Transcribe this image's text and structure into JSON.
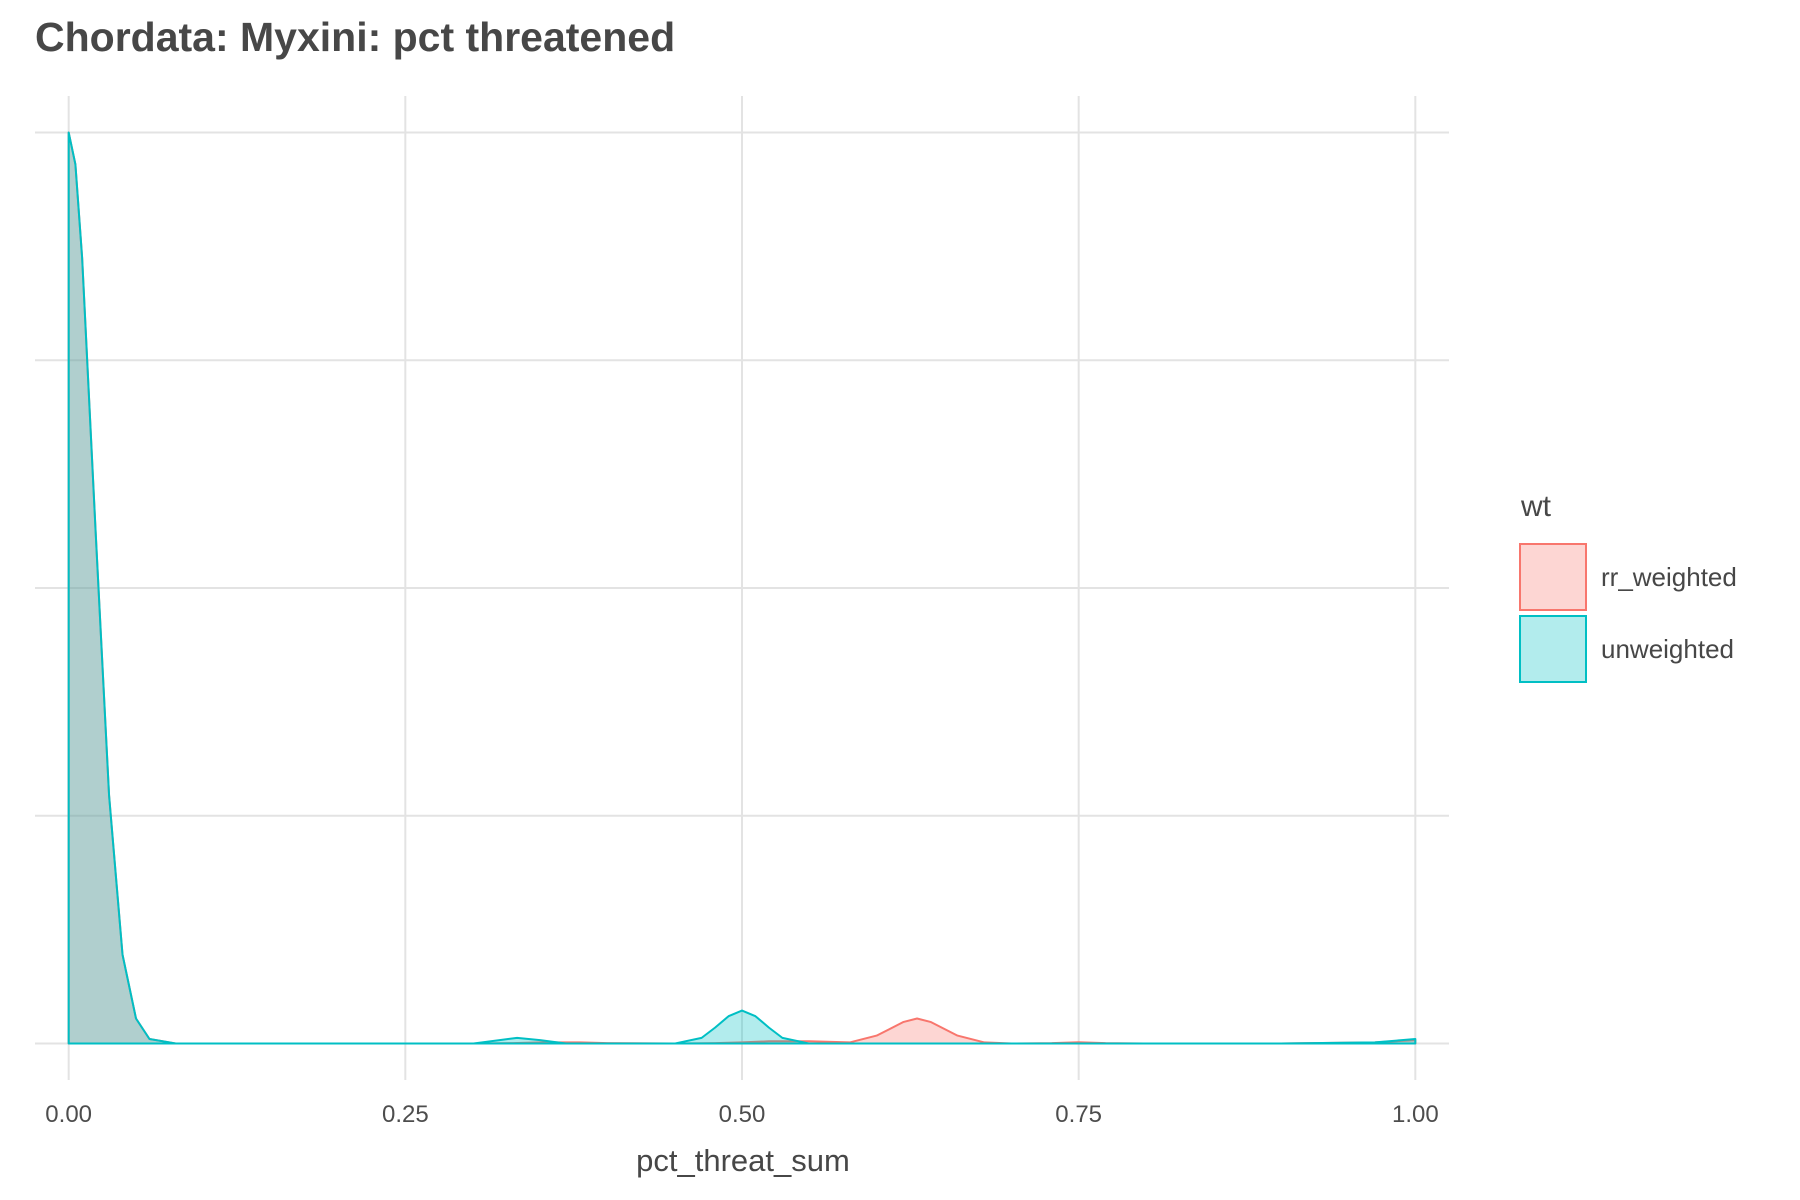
{
  "chart_data": {
    "type": "area",
    "title": "Chordata: Myxini: pct threatened",
    "xlabel": "pct_threat_sum",
    "ylabel": "",
    "xlim": [
      -0.025,
      1.025
    ],
    "ylim": [
      -1.6,
      41.6
    ],
    "x_ticks": [
      0.0,
      0.25,
      0.5,
      0.75,
      1.0
    ],
    "x_tick_labels": [
      "0.00",
      "0.25",
      "0.50",
      "0.75",
      "1.00"
    ],
    "y_gridlines": [
      0,
      10,
      20,
      30,
      40
    ],
    "y_tick_labels_shown": false,
    "grid": true,
    "legend": {
      "title": "wt",
      "placement": "right"
    },
    "series": [
      {
        "name": "rr_weighted",
        "color": "#F8766D",
        "fill": "#F8766D",
        "fill_opacity": 0.3,
        "x": [
          0.0,
          0.005,
          0.01,
          0.02,
          0.03,
          0.04,
          0.05,
          0.06,
          0.08,
          0.1,
          0.2,
          0.3,
          0.33,
          0.35,
          0.38,
          0.4,
          0.45,
          0.48,
          0.5,
          0.52,
          0.55,
          0.58,
          0.6,
          0.62,
          0.63,
          0.64,
          0.66,
          0.68,
          0.7,
          0.73,
          0.75,
          0.77,
          0.8,
          0.9,
          0.97,
          1.0
        ],
        "y": [
          40.0,
          38.6,
          34.5,
          22.5,
          10.9,
          3.9,
          1.1,
          0.2,
          0.0,
          0.0,
          0.0,
          0.0,
          0.02,
          0.05,
          0.05,
          0.02,
          0.0,
          0.02,
          0.05,
          0.1,
          0.1,
          0.05,
          0.35,
          0.95,
          1.1,
          0.95,
          0.35,
          0.05,
          0.0,
          0.02,
          0.06,
          0.02,
          0.0,
          0.0,
          0.05,
          0.15
        ]
      },
      {
        "name": "unweighted",
        "color": "#00BFC4",
        "fill": "#00BFC4",
        "fill_opacity": 0.3,
        "x": [
          0.0,
          0.005,
          0.01,
          0.02,
          0.03,
          0.04,
          0.05,
          0.06,
          0.08,
          0.1,
          0.2,
          0.3,
          0.32,
          0.333,
          0.35,
          0.37,
          0.45,
          0.47,
          0.48,
          0.49,
          0.5,
          0.51,
          0.52,
          0.53,
          0.55,
          0.6,
          0.7,
          0.8,
          0.9,
          0.97,
          0.99,
          1.0
        ],
        "y": [
          40.0,
          38.6,
          34.5,
          22.5,
          10.9,
          3.9,
          1.1,
          0.2,
          0.0,
          0.0,
          0.0,
          0.0,
          0.15,
          0.25,
          0.15,
          0.0,
          0.0,
          0.25,
          0.7,
          1.2,
          1.45,
          1.2,
          0.7,
          0.25,
          0.0,
          0.0,
          0.0,
          0.0,
          0.0,
          0.05,
          0.15,
          0.2
        ]
      }
    ]
  }
}
